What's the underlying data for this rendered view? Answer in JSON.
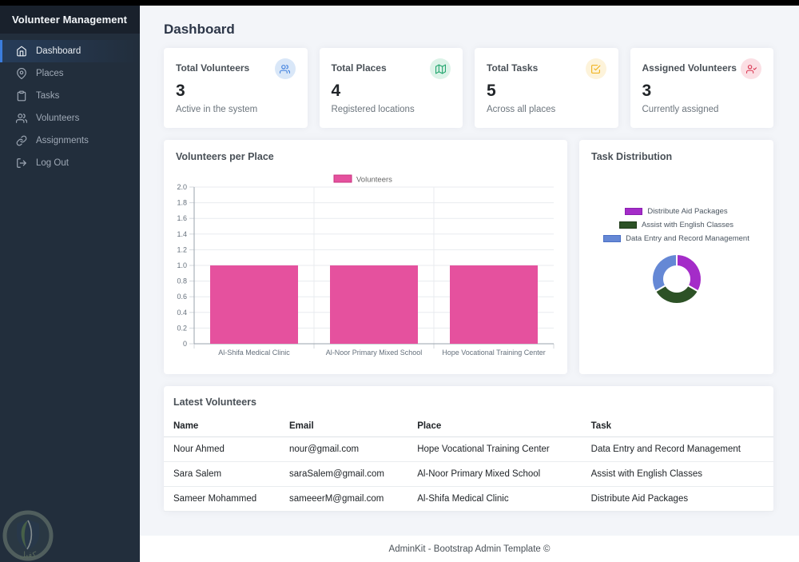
{
  "brand": {
    "title": "Volunteer Management"
  },
  "page": {
    "title": "Dashboard"
  },
  "sidebar": {
    "items": [
      {
        "label": "Dashboard",
        "icon": "home-icon",
        "active": true
      },
      {
        "label": "Places",
        "icon": "map-pin-icon",
        "active": false
      },
      {
        "label": "Tasks",
        "icon": "clipboard-icon",
        "active": false
      },
      {
        "label": "Volunteers",
        "icon": "users-icon",
        "active": false
      },
      {
        "label": "Assignments",
        "icon": "link-icon",
        "active": false
      },
      {
        "label": "Log Out",
        "icon": "log-out-icon",
        "active": false
      }
    ],
    "watermark_text": "كفيل"
  },
  "stats": [
    {
      "title": "Total Volunteers",
      "value": "3",
      "subtitle": "Active in the system",
      "icon": "users-icon",
      "icon_color": "#3b7ddd",
      "icon_bg": "#d9e7f8"
    },
    {
      "title": "Total Places",
      "value": "4",
      "subtitle": "Registered locations",
      "icon": "map-icon",
      "icon_color": "#21a56d",
      "icon_bg": "#dcf3e8"
    },
    {
      "title": "Total Tasks",
      "value": "5",
      "subtitle": "Across all places",
      "icon": "check-square-icon",
      "icon_color": "#efaf13",
      "icon_bg": "#fdf3da"
    },
    {
      "title": "Assigned Volunteers",
      "value": "3",
      "subtitle": "Currently assigned",
      "icon": "user-check-icon",
      "icon_color": "#d9324e",
      "icon_bg": "#fbdfe4"
    }
  ],
  "chart_data": [
    {
      "type": "bar",
      "title": "Volunteers per Place",
      "legend": [
        {
          "label": "Volunteers",
          "color": "#e5519e",
          "border": "#c9337f"
        }
      ],
      "categories": [
        "Al-Shifa Medical Clinic",
        "Al-Noor Primary Mixed School",
        "Hope Vocational Training Center"
      ],
      "values": [
        1,
        1,
        1
      ],
      "ylim": [
        0,
        2
      ],
      "ytick_step": 0.2,
      "grid": true,
      "legend_position": "top",
      "xlabel": "",
      "ylabel": ""
    },
    {
      "type": "pie",
      "title": "Task Distribution",
      "slices": [
        {
          "label": "Distribute Aid Packages",
          "value": 1,
          "color": "#a42cc8",
          "border": "#8a1fb0"
        },
        {
          "label": "Assist with English Classes",
          "value": 1,
          "color": "#2d5226",
          "border": "#1e3a18"
        },
        {
          "label": "Data Entry and Record Management",
          "value": 1,
          "color": "#6588d5",
          "border": "#4a6fc4"
        }
      ],
      "doughnut": true,
      "legend_position": "top"
    }
  ],
  "table": {
    "title": "Latest Volunteers",
    "columns": [
      "Name",
      "Email",
      "Place",
      "Task"
    ],
    "rows": [
      [
        "Nour Ahmed",
        "nour@gmail.com",
        "Hope Vocational Training Center",
        "Data Entry and Record Management"
      ],
      [
        "Sara Salem",
        "saraSalem@gmail.com",
        "Al-Noor Primary Mixed School",
        "Assist with English Classes"
      ],
      [
        "Sameer Mohammed",
        "sameeerM@gmail.com",
        "Al-Shifa Medical Clinic",
        "Distribute Aid Packages"
      ]
    ]
  },
  "footer": {
    "text": "AdminKit - Bootstrap Admin Template ©"
  },
  "colors": {
    "primary": "#3b7ddd",
    "sidebar_bg": "#222e3c",
    "content_bg": "#f3f5f9",
    "bar_pink": "#e5519e"
  }
}
